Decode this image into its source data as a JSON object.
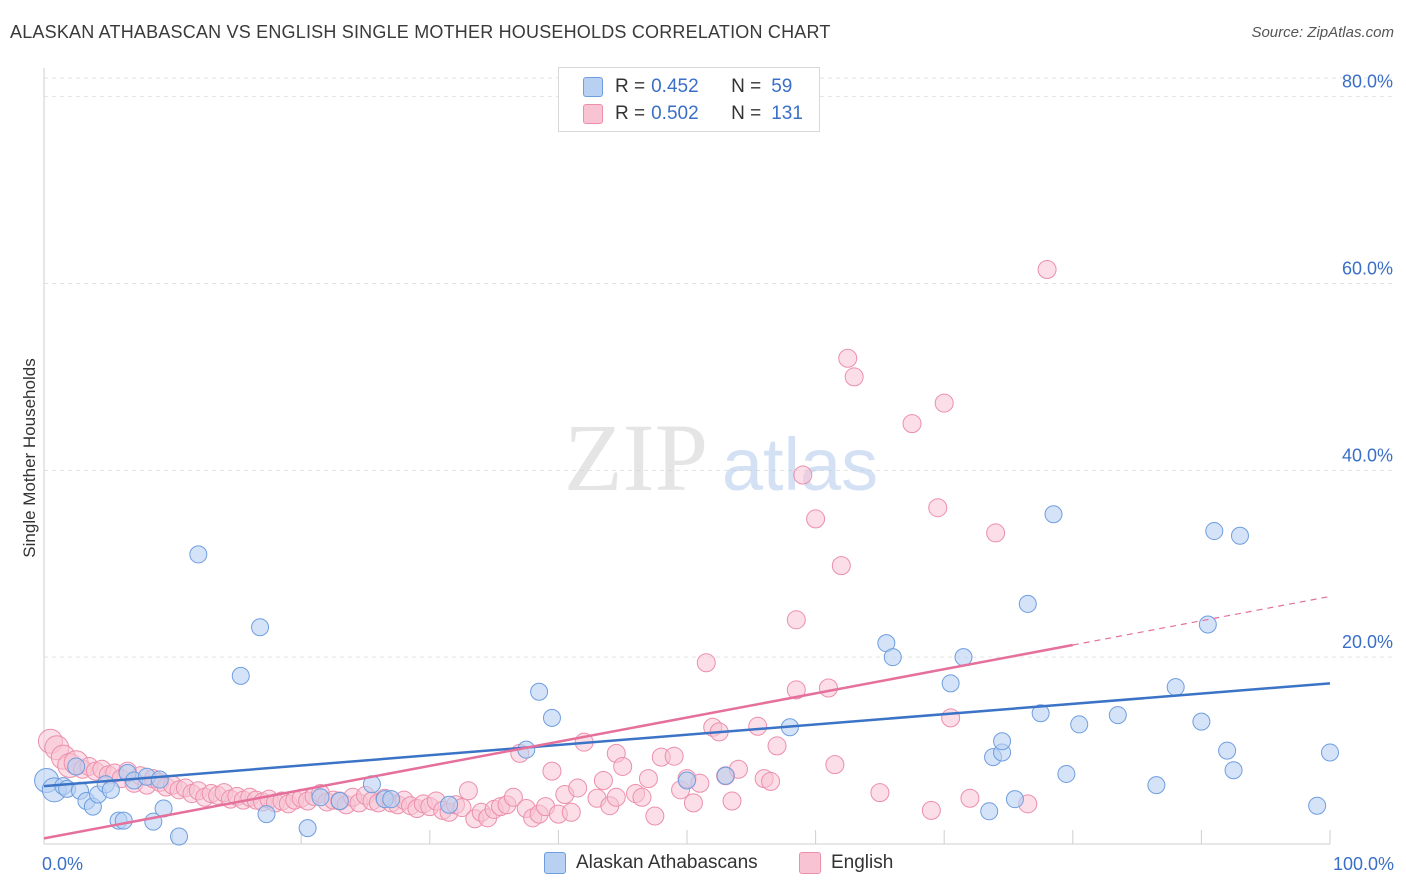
{
  "title": "ALASKAN ATHABASCAN VS ENGLISH SINGLE MOTHER HOUSEHOLDS CORRELATION CHART",
  "source": "Source: ZipAtlas.com",
  "watermark": {
    "zip": "ZIP",
    "atlas": "atlas"
  },
  "legend": {
    "items": [
      {
        "r_label": "R =",
        "r_value": "0.452",
        "n_label": "N =",
        "n_value": "59",
        "color": "#8fb4ea"
      },
      {
        "r_label": "R =",
        "r_value": "0.502",
        "n_label": "N =",
        "n_value": "131",
        "color": "#f4a7bf"
      }
    ]
  },
  "colors": {
    "blue_fill": "#b8d0f2",
    "blue_stroke": "#6f9ee0",
    "blue_line": "#3b73c6",
    "pink_fill": "#f8c3d3",
    "pink_stroke": "#ec8fab",
    "pink_line": "#e5709b",
    "tick_label": "#3a6fc8",
    "grid": "#e3e3e3"
  },
  "chart_data": {
    "type": "scatter",
    "title": "ALASKAN ATHABASCAN VS ENGLISH SINGLE MOTHER HOUSEHOLDS CORRELATION CHART",
    "xlabel": "",
    "ylabel": "Single Mother Households",
    "xlim": [
      0,
      100
    ],
    "ylim": [
      0,
      82
    ],
    "x_tick_labels": [
      "0.0%",
      "100.0%"
    ],
    "y_ticks": [
      20,
      40,
      60,
      80
    ],
    "y_tick_labels": [
      "20.0%",
      "40.0%",
      "60.0%",
      "80.0%"
    ],
    "grid": true,
    "legend_position": "top-center",
    "series": [
      {
        "name": "Alaskan Athabascans",
        "trend": {
          "x": [
            0,
            100
          ],
          "y": [
            6.2,
            17.2
          ]
        },
        "points": [
          [
            0.2,
            6.8
          ],
          [
            0.8,
            5.8
          ],
          [
            1.5,
            6.2
          ],
          [
            1.8,
            5.9
          ],
          [
            2.5,
            8.3
          ],
          [
            2.8,
            5.7
          ],
          [
            3.3,
            4.6
          ],
          [
            3.8,
            4.0
          ],
          [
            4.2,
            5.3
          ],
          [
            4.8,
            6.4
          ],
          [
            5.2,
            5.8
          ],
          [
            5.8,
            2.5
          ],
          [
            6.2,
            2.5
          ],
          [
            6.5,
            7.6
          ],
          [
            7.0,
            6.8
          ],
          [
            8.0,
            7.2
          ],
          [
            8.5,
            2.4
          ],
          [
            9.0,
            6.9
          ],
          [
            9.3,
            3.8
          ],
          [
            10.5,
            0.8
          ],
          [
            12.0,
            31.0
          ],
          [
            15.3,
            18.0
          ],
          [
            16.8,
            23.2
          ],
          [
            17.3,
            3.2
          ],
          [
            20.5,
            1.7
          ],
          [
            21.5,
            5.0
          ],
          [
            23.0,
            4.6
          ],
          [
            25.5,
            6.4
          ],
          [
            26.5,
            4.8
          ],
          [
            27.0,
            4.8
          ],
          [
            31.5,
            4.2
          ],
          [
            37.5,
            10.1
          ],
          [
            38.5,
            16.3
          ],
          [
            39.5,
            13.5
          ],
          [
            50.0,
            6.8
          ],
          [
            53.0,
            7.3
          ],
          [
            58.0,
            12.5
          ],
          [
            65.5,
            21.5
          ],
          [
            66.0,
            20.0
          ],
          [
            70.5,
            17.2
          ],
          [
            71.5,
            20.0
          ],
          [
            73.5,
            3.5
          ],
          [
            73.8,
            9.3
          ],
          [
            74.5,
            9.8
          ],
          [
            74.5,
            11.0
          ],
          [
            75.5,
            4.8
          ],
          [
            76.5,
            25.7
          ],
          [
            77.5,
            14.0
          ],
          [
            78.5,
            35.3
          ],
          [
            79.5,
            7.5
          ],
          [
            80.5,
            12.8
          ],
          [
            83.5,
            13.8
          ],
          [
            86.5,
            6.3
          ],
          [
            88.0,
            16.8
          ],
          [
            90.0,
            13.1
          ],
          [
            90.5,
            23.5
          ],
          [
            91.0,
            33.5
          ],
          [
            92.0,
            10.0
          ],
          [
            92.5,
            7.9
          ],
          [
            93.0,
            33.0
          ],
          [
            99.0,
            4.1
          ],
          [
            100.0,
            9.8
          ]
        ]
      },
      {
        "name": "English",
        "trend": {
          "x": [
            0,
            80
          ],
          "y": [
            0.6,
            21.3
          ]
        },
        "trend_dashed": {
          "x": [
            80,
            100
          ],
          "y": [
            21.3,
            26.5
          ]
        },
        "points": [
          [
            0.5,
            11.0
          ],
          [
            1.0,
            10.3
          ],
          [
            1.5,
            9.3
          ],
          [
            2.0,
            8.4
          ],
          [
            2.5,
            8.7
          ],
          [
            3.0,
            8.0
          ],
          [
            3.5,
            8.3
          ],
          [
            4.0,
            7.8
          ],
          [
            4.5,
            8.0
          ],
          [
            5.0,
            7.4
          ],
          [
            5.5,
            7.6
          ],
          [
            6.0,
            7.0
          ],
          [
            6.5,
            7.8
          ],
          [
            7.0,
            6.5
          ],
          [
            7.5,
            7.3
          ],
          [
            8.0,
            6.3
          ],
          [
            8.5,
            7.0
          ],
          [
            9.0,
            6.6
          ],
          [
            9.5,
            6.1
          ],
          [
            10.0,
            6.3
          ],
          [
            10.5,
            5.8
          ],
          [
            11.0,
            6.0
          ],
          [
            11.5,
            5.4
          ],
          [
            12.0,
            5.7
          ],
          [
            12.5,
            5.0
          ],
          [
            13.0,
            5.4
          ],
          [
            13.5,
            5.2
          ],
          [
            14.0,
            5.5
          ],
          [
            14.5,
            4.8
          ],
          [
            15.0,
            5.1
          ],
          [
            15.5,
            4.7
          ],
          [
            16.0,
            5.0
          ],
          [
            16.5,
            4.7
          ],
          [
            17.0,
            4.5
          ],
          [
            17.5,
            4.8
          ],
          [
            18.0,
            4.4
          ],
          [
            18.5,
            4.6
          ],
          [
            19.0,
            4.3
          ],
          [
            19.5,
            4.7
          ],
          [
            20.0,
            4.9
          ],
          [
            20.5,
            4.6
          ],
          [
            21.0,
            5.1
          ],
          [
            21.5,
            5.4
          ],
          [
            22.0,
            4.5
          ],
          [
            22.5,
            4.7
          ],
          [
            23.0,
            4.6
          ],
          [
            23.5,
            4.2
          ],
          [
            24.0,
            5.0
          ],
          [
            24.5,
            4.4
          ],
          [
            25.0,
            5.2
          ],
          [
            25.5,
            4.6
          ],
          [
            26.0,
            4.4
          ],
          [
            26.5,
            4.9
          ],
          [
            27.0,
            4.4
          ],
          [
            27.5,
            4.2
          ],
          [
            28.0,
            4.7
          ],
          [
            28.5,
            4.1
          ],
          [
            29.0,
            3.8
          ],
          [
            29.5,
            4.3
          ],
          [
            30.0,
            4.0
          ],
          [
            30.5,
            4.6
          ],
          [
            31.0,
            3.6
          ],
          [
            31.5,
            3.4
          ],
          [
            32.0,
            4.2
          ],
          [
            32.5,
            3.9
          ],
          [
            33.0,
            5.7
          ],
          [
            33.5,
            2.7
          ],
          [
            34.0,
            3.4
          ],
          [
            34.5,
            2.8
          ],
          [
            35.0,
            3.7
          ],
          [
            35.5,
            4.0
          ],
          [
            36.0,
            4.2
          ],
          [
            36.5,
            5.0
          ],
          [
            37.0,
            9.7
          ],
          [
            37.5,
            3.8
          ],
          [
            38.0,
            2.8
          ],
          [
            38.5,
            3.2
          ],
          [
            39.0,
            4.0
          ],
          [
            39.5,
            7.8
          ],
          [
            40.0,
            3.2
          ],
          [
            40.5,
            5.3
          ],
          [
            41.0,
            3.4
          ],
          [
            41.5,
            6.0
          ],
          [
            42.0,
            10.9
          ],
          [
            43.0,
            4.9
          ],
          [
            43.5,
            6.8
          ],
          [
            44.0,
            4.1
          ],
          [
            44.5,
            5.0
          ],
          [
            44.5,
            9.7
          ],
          [
            45.0,
            8.3
          ],
          [
            46.0,
            5.4
          ],
          [
            46.5,
            5.0
          ],
          [
            47.0,
            7.0
          ],
          [
            47.5,
            3.0
          ],
          [
            48.0,
            9.3
          ],
          [
            49.0,
            9.4
          ],
          [
            49.5,
            5.8
          ],
          [
            50.0,
            7.0
          ],
          [
            50.5,
            4.4
          ],
          [
            51.0,
            6.5
          ],
          [
            51.5,
            19.4
          ],
          [
            52.0,
            12.5
          ],
          [
            52.5,
            12.0
          ],
          [
            53.0,
            7.3
          ],
          [
            53.5,
            4.6
          ],
          [
            54.0,
            8.0
          ],
          [
            55.5,
            12.6
          ],
          [
            56.0,
            7.0
          ],
          [
            56.5,
            6.7
          ],
          [
            57.0,
            10.5
          ],
          [
            58.5,
            24.0
          ],
          [
            58.5,
            16.5
          ],
          [
            59.0,
            39.5
          ],
          [
            60.0,
            34.8
          ],
          [
            61.0,
            16.7
          ],
          [
            61.5,
            8.5
          ],
          [
            62.0,
            29.8
          ],
          [
            62.5,
            52.0
          ],
          [
            63.0,
            50.0
          ],
          [
            65.0,
            5.5
          ],
          [
            67.5,
            45.0
          ],
          [
            69.0,
            3.6
          ],
          [
            69.5,
            36.0
          ],
          [
            70.0,
            47.2
          ],
          [
            70.5,
            13.5
          ],
          [
            72.0,
            4.9
          ],
          [
            74.0,
            33.3
          ],
          [
            76.5,
            4.3
          ],
          [
            78.0,
            61.5
          ]
        ]
      }
    ]
  }
}
